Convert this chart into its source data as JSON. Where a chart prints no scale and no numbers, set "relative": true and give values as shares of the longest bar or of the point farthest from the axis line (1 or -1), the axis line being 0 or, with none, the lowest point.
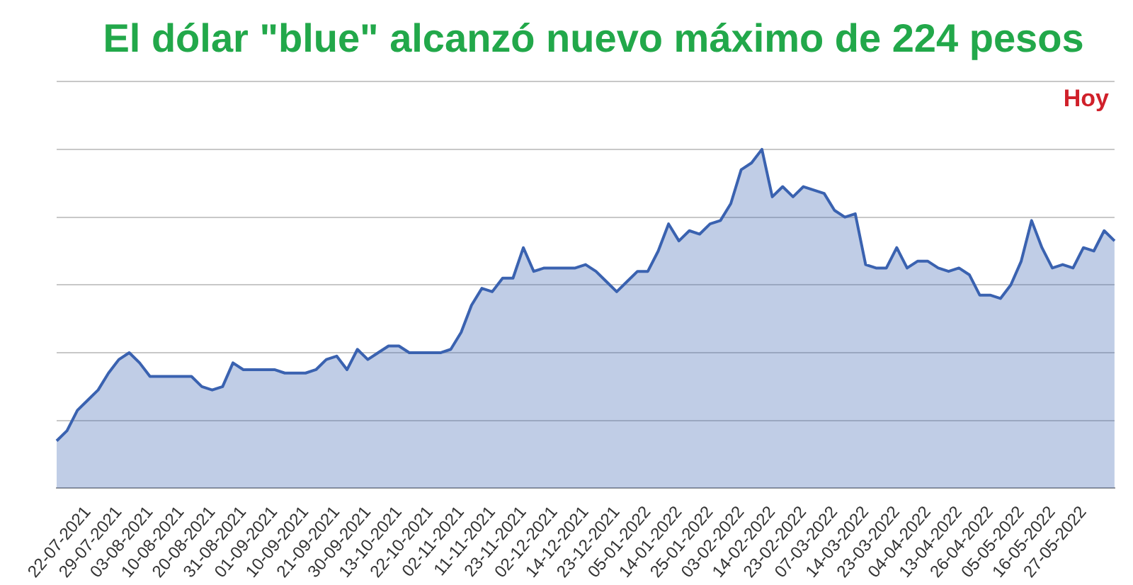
{
  "chart_data": {
    "type": "area",
    "title": "El dólar \"blue\" alcanzó nuevo máximo de 224 pesos",
    "annotations": [
      "Hoy"
    ],
    "relative": true,
    "grid": "y",
    "legend": false,
    "marker": "none",
    "line_style": "solid",
    "categories": [
      null,
      null,
      null,
      "22-07-2021",
      null,
      null,
      "29-07-2021",
      null,
      null,
      "03-08-2021",
      null,
      null,
      "10-08-2021",
      null,
      null,
      "20-08-2021",
      null,
      null,
      "31-08-2021",
      null,
      null,
      "01-09-2021",
      null,
      null,
      "10-09-2021",
      null,
      null,
      "21-09-2021",
      null,
      null,
      "30-09-2021",
      null,
      null,
      "13-10-2021",
      null,
      null,
      "22-10-2021",
      null,
      null,
      "02-11-2021",
      null,
      null,
      "11-11-2021",
      null,
      null,
      "23-11-2021",
      null,
      null,
      "02-12-2021",
      null,
      null,
      "14-12-2021",
      null,
      null,
      "23-12-2021",
      null,
      null,
      "05-01-2022",
      null,
      null,
      "14-01-2022",
      null,
      null,
      "25-01-2022",
      null,
      null,
      "03-02-2022",
      null,
      null,
      "14-02-2022",
      null,
      null,
      "23-02-2022",
      null,
      null,
      "07-03-2022",
      null,
      null,
      "14-03-2022",
      null,
      null,
      "23-03-2022",
      null,
      null,
      "04-04-2022",
      null,
      null,
      "13-04-2022",
      null,
      null,
      "26-04-2022",
      null,
      null,
      "05-05-2022",
      null,
      null,
      "16-05-2022",
      null,
      null,
      "27-05-2022",
      null,
      null,
      null
    ],
    "series": [
      {
        "color": "#3a62b0",
        "values": [
          0.14,
          0.17,
          0.23,
          0.26,
          0.29,
          0.34,
          0.38,
          0.4,
          0.37,
          0.33,
          0.33,
          0.33,
          0.33,
          0.33,
          0.3,
          0.29,
          0.3,
          0.37,
          0.35,
          0.35,
          0.35,
          0.35,
          0.34,
          0.34,
          0.34,
          0.35,
          0.38,
          0.39,
          0.35,
          0.41,
          0.38,
          0.4,
          0.42,
          0.42,
          0.4,
          0.4,
          0.4,
          0.4,
          0.41,
          0.46,
          0.54,
          0.59,
          0.58,
          0.62,
          0.62,
          0.71,
          0.64,
          0.65,
          0.65,
          0.65,
          0.65,
          0.66,
          0.64,
          0.61,
          0.58,
          0.61,
          0.64,
          0.64,
          0.7,
          0.78,
          0.73,
          0.76,
          0.75,
          0.78,
          0.79,
          0.84,
          0.94,
          0.96,
          1,
          0.86,
          0.89,
          0.86,
          0.89,
          0.88,
          0.87,
          0.82,
          0.8,
          0.81,
          0.66,
          0.65,
          0.65,
          0.71,
          0.65,
          0.67,
          0.67,
          0.65,
          0.64,
          0.65,
          0.63,
          0.57,
          0.57,
          0.56,
          0.6,
          0.67,
          0.79,
          0.71,
          0.65,
          0.66,
          0.65,
          0.71,
          0.7,
          0.76,
          0.73
        ]
      }
    ]
  }
}
